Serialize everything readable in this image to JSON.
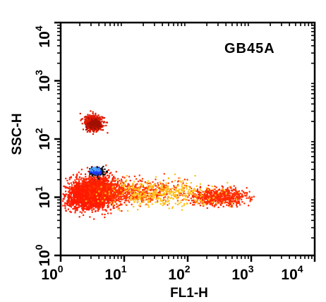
{
  "chart_data": {
    "type": "scatter",
    "title": "",
    "sample_label": "GB45A",
    "xlabel": "FL1-H",
    "ylabel": "SSC-H",
    "xscale": "log",
    "yscale": "log",
    "xlim": [
      1,
      10000
    ],
    "ylim": [
      1,
      10000
    ],
    "grid": false,
    "x_tick_labels": [
      {
        "base": "10",
        "exp": "0",
        "value": 1
      },
      {
        "base": "10",
        "exp": "1",
        "value": 10
      },
      {
        "base": "10",
        "exp": "2",
        "value": 100
      },
      {
        "base": "10",
        "exp": "3",
        "value": 1000
      },
      {
        "base": "10",
        "exp": "4",
        "value": 10000
      }
    ],
    "y_tick_labels": [
      {
        "base": "10",
        "exp": "0",
        "value": 1
      },
      {
        "base": "10",
        "exp": "1",
        "value": 10
      },
      {
        "base": "10",
        "exp": "2",
        "value": 100
      },
      {
        "base": "10",
        "exp": "3",
        "value": 1000
      },
      {
        "base": "10",
        "exp": "4",
        "value": 10000
      }
    ],
    "density_colors": {
      "low": "#ffd21f",
      "mid": "#ff2a00",
      "high": "#cc1a00",
      "dense": "#111111",
      "peak": "#1e3cff",
      "top": "#4aa8ff"
    },
    "populations": [
      {
        "center_x": 3.5,
        "center_y": 16,
        "spread_x": 0.13,
        "spread_y": 0.08,
        "count": 340,
        "color": "#e01800"
      },
      {
        "center_x": 3.6,
        "center_y": 12.5,
        "spread_x": 0.22,
        "spread_y": 0.14,
        "count": 1500,
        "color": "#ff2200"
      },
      {
        "center_x": 2.3,
        "center_y": 10,
        "spread_x": 0.16,
        "spread_y": 0.1,
        "count": 700,
        "color": "#ff1a00"
      },
      {
        "center_x": 15,
        "center_y": 13,
        "spread_x": 0.35,
        "spread_y": 0.1,
        "count": 450,
        "color": "#ff3a00"
      },
      {
        "center_x": 300,
        "center_y": 10.5,
        "spread_x": 0.22,
        "spread_y": 0.07,
        "count": 650,
        "color": "#ff2a00"
      },
      {
        "center_x": 40,
        "center_y": 12,
        "spread_x": 0.45,
        "spread_y": 0.11,
        "count": 380,
        "color": "#ffc21a"
      },
      {
        "center_x": 3.7,
        "center_y": 28,
        "spread_x": 0.06,
        "spread_y": 0.035,
        "count": 160,
        "color": "#111111"
      },
      {
        "center_x": 3.5,
        "center_y": 29,
        "spread_x": 0.045,
        "spread_y": 0.025,
        "count": 70,
        "color": "#1e3cff"
      },
      {
        "center_x": 3.4,
        "center_y": 30.5,
        "spread_x": 0.03,
        "spread_y": 0.015,
        "count": 25,
        "color": "#4aa8ff"
      },
      {
        "center_x": 3.2,
        "center_y": 195,
        "spread_x": 0.07,
        "spread_y": 0.065,
        "count": 520,
        "color": "#e01800"
      },
      {
        "center_x": 3.3,
        "center_y": 185,
        "spread_x": 0.05,
        "spread_y": 0.04,
        "count": 140,
        "color": "#a01000"
      }
    ]
  }
}
